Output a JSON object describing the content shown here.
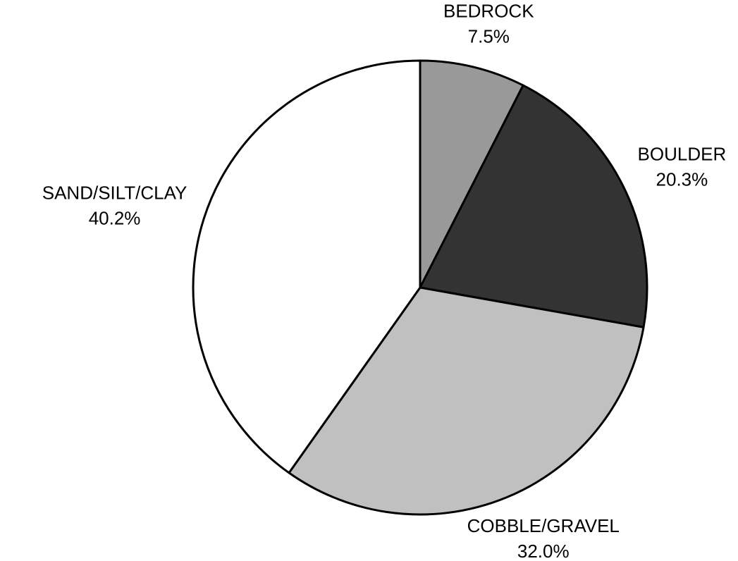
{
  "chart_data": {
    "type": "pie",
    "categories": [
      "BEDROCK",
      "BOULDER",
      "COBBLE/GRAVEL",
      "SAND/SILT/CLAY"
    ],
    "values": [
      7.5,
      20.3,
      32.0,
      40.2
    ],
    "value_labels": [
      "7.5%",
      "20.3%",
      "32.0%",
      "40.2%"
    ],
    "colors": [
      "#999999",
      "#333333",
      "#c0c0c0",
      "#ffffff"
    ]
  }
}
